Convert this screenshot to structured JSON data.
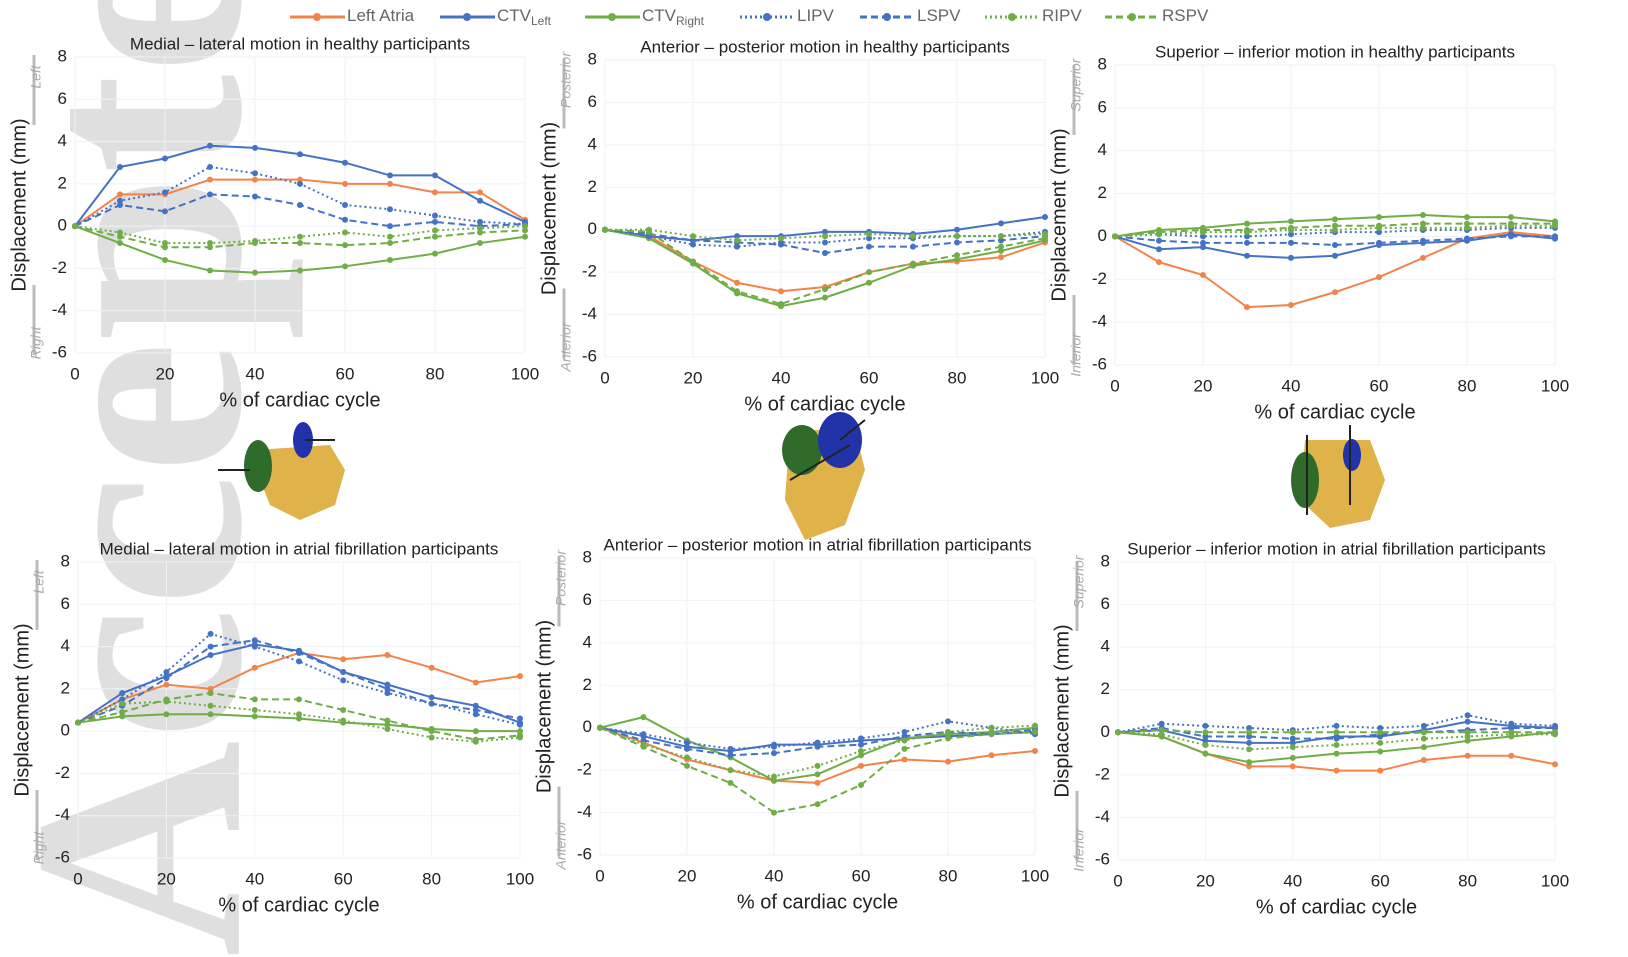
{
  "watermark": "Accepted Article",
  "legend": [
    {
      "name": "Left Atria",
      "color": "#f4834a",
      "dash": "solid"
    },
    {
      "name": "CTV",
      "subscript": "Left",
      "color": "#4472c4",
      "dash": "solid"
    },
    {
      "name": "CTV",
      "subscript": "Right",
      "color": "#70ad47",
      "dash": "solid"
    },
    {
      "name": "LIPV",
      "color": "#4472c4",
      "dash": "dotted"
    },
    {
      "name": "LSPV",
      "color": "#4472c4",
      "dash": "dashed"
    },
    {
      "name": "RIPV",
      "color": "#70ad47",
      "dash": "dotted"
    },
    {
      "name": "RSPV",
      "color": "#70ad47",
      "dash": "dashed"
    }
  ],
  "chart_data": [
    {
      "type": "line",
      "title": "Medial – lateral motion in healthy participants",
      "xlabel": "% of cardiac cycle",
      "ylabel": "Displacement (mm)",
      "direction_top": "Left",
      "direction_bottom": "Right",
      "grid": true,
      "xlim": [
        0,
        100
      ],
      "ylim": [
        -6,
        8
      ],
      "xticks": [
        0,
        20,
        40,
        60,
        80,
        100
      ],
      "yticks": [
        -6,
        -4,
        -2,
        0,
        2,
        4,
        6,
        8
      ],
      "x": [
        0,
        10,
        20,
        30,
        40,
        50,
        60,
        70,
        80,
        90,
        100
      ],
      "series": [
        {
          "values": [
            0,
            1.5,
            1.5,
            2.2,
            2.2,
            2.2,
            2.0,
            2.0,
            1.6,
            1.6,
            0.3
          ]
        },
        {
          "values": [
            0,
            2.8,
            3.2,
            3.8,
            3.7,
            3.4,
            3.0,
            2.4,
            2.4,
            1.2,
            0.2
          ]
        },
        {
          "values": [
            0,
            -0.8,
            -1.6,
            -2.1,
            -2.2,
            -2.1,
            -1.9,
            -1.6,
            -1.3,
            -0.8,
            -0.5
          ]
        },
        {
          "values": [
            0,
            1.2,
            1.6,
            2.8,
            2.5,
            2.0,
            1.0,
            0.8,
            0.5,
            0.2,
            0.1
          ]
        },
        {
          "values": [
            0,
            1.0,
            0.7,
            1.5,
            1.4,
            1.0,
            0.3,
            0.0,
            0.2,
            0.0,
            0.1
          ]
        },
        {
          "values": [
            0,
            -0.3,
            -0.8,
            -0.8,
            -0.7,
            -0.5,
            -0.3,
            -0.5,
            -0.2,
            -0.1,
            0.0
          ]
        },
        {
          "values": [
            0,
            -0.5,
            -1.0,
            -1.0,
            -0.8,
            -0.8,
            -0.9,
            -0.8,
            -0.5,
            -0.3,
            -0.2
          ]
        }
      ]
    },
    {
      "type": "line",
      "title": "Anterior – posterior motion in healthy participants",
      "xlabel": "% of cardiac cycle",
      "ylabel": "Displacement (mm)",
      "direction_top": "Posterior",
      "direction_bottom": "Anterior",
      "grid": true,
      "xlim": [
        0,
        100
      ],
      "ylim": [
        -6,
        8
      ],
      "xticks": [
        0,
        20,
        40,
        60,
        80,
        100
      ],
      "yticks": [
        -6,
        -4,
        -2,
        0,
        2,
        4,
        6,
        8
      ],
      "x": [
        0,
        10,
        20,
        30,
        40,
        50,
        60,
        70,
        80,
        90,
        100
      ],
      "series": [
        {
          "values": [
            0,
            -0.3,
            -1.5,
            -2.5,
            -2.9,
            -2.7,
            -2.0,
            -1.6,
            -1.5,
            -1.3,
            -0.6
          ]
        },
        {
          "values": [
            0,
            -0.3,
            -0.5,
            -0.3,
            -0.3,
            -0.1,
            -0.1,
            -0.2,
            0.0,
            0.3,
            0.6
          ]
        },
        {
          "values": [
            0,
            -0.4,
            -1.6,
            -3.0,
            -3.6,
            -3.2,
            -2.5,
            -1.7,
            -1.4,
            -1.0,
            -0.5
          ]
        },
        {
          "values": [
            0,
            -0.3,
            -0.7,
            -0.8,
            -0.6,
            -0.6,
            -0.4,
            -0.4,
            -0.3,
            -0.3,
            -0.1
          ]
        },
        {
          "values": [
            0,
            -0.2,
            -0.5,
            -0.6,
            -0.7,
            -1.1,
            -0.8,
            -0.8,
            -0.6,
            -0.5,
            -0.3
          ]
        },
        {
          "values": [
            0,
            0.0,
            -0.3,
            -0.5,
            -0.4,
            -0.3,
            -0.2,
            -0.3,
            -0.3,
            -0.3,
            -0.2
          ]
        },
        {
          "values": [
            0,
            -0.1,
            -1.5,
            -2.9,
            -3.5,
            -2.8,
            -2.0,
            -1.6,
            -1.2,
            -0.8,
            -0.4
          ]
        }
      ]
    },
    {
      "type": "line",
      "title": "Superior – inferior motion in healthy participants",
      "xlabel": "% of cardiac cycle",
      "ylabel": "Displacement (mm)",
      "direction_top": "Superior",
      "direction_bottom": "Inferior",
      "grid": true,
      "xlim": [
        0,
        100
      ],
      "ylim": [
        -6,
        8
      ],
      "xticks": [
        0,
        20,
        40,
        60,
        80,
        100
      ],
      "yticks": [
        -6,
        -4,
        -2,
        0,
        2,
        4,
        6,
        8
      ],
      "x": [
        0,
        10,
        20,
        30,
        40,
        50,
        60,
        70,
        80,
        90,
        100
      ],
      "series": [
        {
          "values": [
            0,
            -1.2,
            -1.8,
            -3.3,
            -3.2,
            -2.6,
            -1.9,
            -1.0,
            -0.1,
            0.2,
            0.0
          ]
        },
        {
          "values": [
            0,
            -0.6,
            -0.5,
            -0.9,
            -1.0,
            -0.9,
            -0.4,
            -0.3,
            -0.2,
            0.1,
            -0.1
          ]
        },
        {
          "values": [
            0,
            0.3,
            0.4,
            0.6,
            0.7,
            0.8,
            0.9,
            1.0,
            0.9,
            0.9,
            0.7
          ]
        },
        {
          "values": [
            0,
            0.1,
            0.0,
            0.0,
            0.1,
            0.2,
            0.2,
            0.3,
            0.3,
            0.4,
            0.4
          ]
        },
        {
          "values": [
            0,
            -0.2,
            -0.3,
            -0.3,
            -0.3,
            -0.4,
            -0.3,
            -0.2,
            -0.1,
            0.0,
            0.0
          ]
        },
        {
          "values": [
            0,
            0.1,
            0.2,
            0.2,
            0.3,
            0.3,
            0.4,
            0.4,
            0.4,
            0.5,
            0.5
          ]
        },
        {
          "values": [
            0,
            0.2,
            0.3,
            0.3,
            0.4,
            0.5,
            0.5,
            0.6,
            0.6,
            0.6,
            0.6
          ]
        }
      ]
    },
    {
      "type": "line",
      "title": "Medial – lateral motion in atrial fibrillation participants",
      "xlabel": "% of cardiac cycle",
      "ylabel": "Displacement (mm)",
      "direction_top": "Left",
      "direction_bottom": "Right",
      "grid": true,
      "xlim": [
        0,
        100
      ],
      "ylim": [
        -6,
        8
      ],
      "xticks": [
        0,
        20,
        40,
        60,
        80,
        100
      ],
      "yticks": [
        -6,
        -4,
        -2,
        0,
        2,
        4,
        6,
        8
      ],
      "x": [
        0,
        10,
        20,
        30,
        40,
        50,
        60,
        70,
        80,
        90,
        100
      ],
      "series": [
        {
          "values": [
            0.4,
            1.5,
            2.2,
            2.0,
            3.0,
            3.7,
            3.4,
            3.6,
            3.0,
            2.3,
            2.6
          ]
        },
        {
          "values": [
            0.4,
            1.8,
            2.6,
            3.6,
            4.1,
            3.8,
            2.8,
            2.2,
            1.6,
            1.2,
            0.4
          ]
        },
        {
          "values": [
            0.4,
            0.7,
            0.8,
            0.8,
            0.7,
            0.6,
            0.4,
            0.3,
            0.1,
            0.0,
            0.0
          ]
        },
        {
          "values": [
            0.4,
            1.5,
            2.8,
            4.6,
            4.0,
            3.3,
            2.4,
            1.8,
            1.3,
            0.8,
            0.3
          ]
        },
        {
          "values": [
            0.4,
            1.2,
            2.5,
            4.0,
            4.3,
            3.7,
            2.8,
            2.0,
            1.3,
            1.0,
            0.6
          ]
        },
        {
          "values": [
            0.4,
            1.3,
            1.4,
            1.2,
            1.0,
            0.8,
            0.5,
            0.1,
            -0.3,
            -0.5,
            -0.3
          ]
        },
        {
          "values": [
            0.4,
            0.9,
            1.5,
            1.8,
            1.5,
            1.5,
            1.0,
            0.5,
            0.0,
            -0.4,
            -0.2
          ]
        }
      ]
    },
    {
      "type": "line",
      "title": "Anterior – posterior motion in atrial fibrillation participants",
      "xlabel": "% of cardiac cycle",
      "ylabel": "Displacement (mm)",
      "direction_top": "Posterior",
      "direction_bottom": "Anterior",
      "grid": true,
      "xlim": [
        0,
        100
      ],
      "ylim": [
        -6,
        8
      ],
      "xticks": [
        0,
        20,
        40,
        60,
        80,
        100
      ],
      "yticks": [
        -6,
        -4,
        -2,
        0,
        2,
        4,
        6,
        8
      ],
      "x": [
        0,
        10,
        20,
        30,
        40,
        50,
        60,
        70,
        80,
        90,
        100
      ],
      "series": [
        {
          "values": [
            0,
            -0.7,
            -1.5,
            -2.0,
            -2.5,
            -2.6,
            -1.8,
            -1.5,
            -1.6,
            -1.3,
            -1.1
          ]
        },
        {
          "values": [
            0,
            -0.4,
            -0.9,
            -1.1,
            -0.8,
            -0.8,
            -0.6,
            -0.5,
            -0.4,
            -0.3,
            -0.2
          ]
        },
        {
          "values": [
            0,
            0.5,
            -0.6,
            -1.4,
            -2.5,
            -2.2,
            -1.3,
            -0.5,
            -0.3,
            -0.2,
            0.0
          ]
        },
        {
          "values": [
            0,
            -0.3,
            -0.7,
            -1.0,
            -0.9,
            -0.7,
            -0.5,
            -0.2,
            0.3,
            0.0,
            -0.3
          ]
        },
        {
          "values": [
            0,
            -0.6,
            -1.0,
            -1.3,
            -1.2,
            -0.9,
            -0.8,
            -0.4,
            -0.2,
            -0.3,
            -0.1
          ]
        },
        {
          "values": [
            0,
            -0.8,
            -1.4,
            -2.0,
            -2.3,
            -1.8,
            -1.1,
            -0.6,
            -0.2,
            0.0,
            0.1
          ]
        },
        {
          "values": [
            0,
            -0.9,
            -1.8,
            -2.6,
            -4.0,
            -3.6,
            -2.7,
            -1.0,
            -0.5,
            -0.3,
            -0.2
          ]
        }
      ]
    },
    {
      "type": "line",
      "title": "Superior – inferior motion in atrial fibrillation participants",
      "xlabel": "% of cardiac cycle",
      "ylabel": "Displacement (mm)",
      "direction_top": "Superior",
      "direction_bottom": "Inferior",
      "grid": true,
      "xlim": [
        0,
        100
      ],
      "ylim": [
        -6,
        8
      ],
      "xticks": [
        0,
        20,
        40,
        60,
        80,
        100
      ],
      "yticks": [
        -6,
        -4,
        -2,
        0,
        2,
        4,
        6,
        8
      ],
      "x": [
        0,
        10,
        20,
        30,
        40,
        50,
        60,
        70,
        80,
        90,
        100
      ],
      "series": [
        {
          "values": [
            0,
            -0.2,
            -1.0,
            -1.6,
            -1.6,
            -1.8,
            -1.8,
            -1.3,
            -1.1,
            -1.1,
            -1.5
          ]
        },
        {
          "values": [
            0,
            0.1,
            -0.4,
            -0.5,
            -0.5,
            -0.2,
            -0.2,
            0.1,
            0.5,
            0.3,
            0.2
          ]
        },
        {
          "values": [
            0,
            -0.2,
            -1.0,
            -1.4,
            -1.2,
            -1.0,
            -0.9,
            -0.7,
            -0.4,
            -0.2,
            0.0
          ]
        },
        {
          "values": [
            0,
            0.4,
            0.3,
            0.2,
            0.1,
            0.3,
            0.2,
            0.3,
            0.8,
            0.4,
            0.3
          ]
        },
        {
          "values": [
            0,
            0.2,
            -0.2,
            -0.2,
            -0.3,
            -0.3,
            -0.1,
            0.0,
            0.1,
            0.2,
            0.2
          ]
        },
        {
          "values": [
            0,
            -0.1,
            -0.6,
            -0.8,
            -0.7,
            -0.6,
            -0.5,
            -0.3,
            -0.2,
            -0.1,
            -0.1
          ]
        },
        {
          "values": [
            0,
            0.1,
            0.0,
            0.0,
            0.0,
            0.0,
            0.0,
            0.0,
            0.0,
            0.0,
            0.0
          ]
        }
      ]
    }
  ]
}
